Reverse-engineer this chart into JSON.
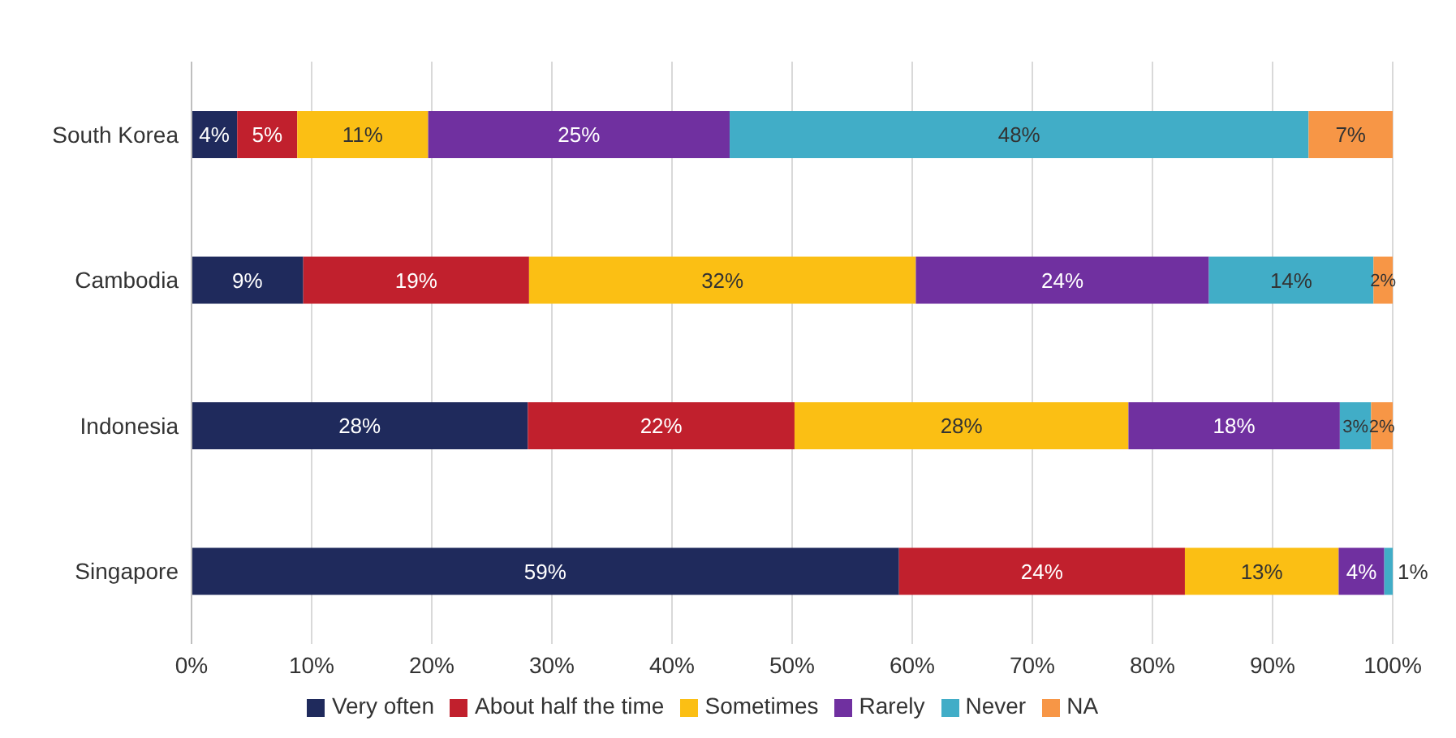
{
  "chart_data": {
    "type": "bar",
    "orientation": "horizontal",
    "stacked": true,
    "categories": [
      "South Korea",
      "Cambodia",
      "Indonesia",
      "Singapore"
    ],
    "series": [
      {
        "name": "Very often",
        "color": "#1f2a5c",
        "values": [
          3.8,
          9.3,
          28,
          58.9
        ],
        "value_labels": [
          "4%",
          "9%",
          "28%",
          "59%"
        ]
      },
      {
        "name": "About half the time",
        "color": "#c1202d",
        "values": [
          5,
          18.8,
          22.2,
          23.8
        ],
        "value_labels": [
          "5%",
          "19%",
          "22%",
          "24%"
        ]
      },
      {
        "name": "Sometimes",
        "color": "#fbbf14",
        "values": [
          10.9,
          32.2,
          27.8,
          12.8
        ],
        "value_labels": [
          "11%",
          "32%",
          "28%",
          "13%"
        ]
      },
      {
        "name": "Rarely",
        "color": "#7030a0",
        "values": [
          25.1,
          24.4,
          17.6,
          3.8
        ],
        "value_labels": [
          "25%",
          "24%",
          "18%",
          "4%"
        ]
      },
      {
        "name": "Never",
        "color": "#41adc7",
        "values": [
          48.2,
          13.7,
          2.6,
          0.7
        ],
        "value_labels": [
          "48%",
          "14%",
          "3%",
          "1%"
        ]
      },
      {
        "name": "NA",
        "color": "#f79646",
        "values": [
          7,
          1.6,
          1.8,
          null
        ],
        "value_labels": [
          "7%",
          "2%",
          "2%",
          null
        ]
      }
    ],
    "xlim": [
      0,
      100
    ],
    "xticks": [
      {
        "value": 0,
        "label": "0%"
      },
      {
        "value": 10,
        "label": "10%"
      },
      {
        "value": 20,
        "label": "20%"
      },
      {
        "value": 30,
        "label": "30%"
      },
      {
        "value": 40,
        "label": "40%"
      },
      {
        "value": 50,
        "label": "50%"
      },
      {
        "value": 60,
        "label": "60%"
      },
      {
        "value": 70,
        "label": "70%"
      },
      {
        "value": 80,
        "label": "80%"
      },
      {
        "value": 90,
        "label": "90%"
      },
      {
        "value": 100,
        "label": "100%"
      }
    ],
    "grid": "x",
    "legend": "bottom"
  }
}
